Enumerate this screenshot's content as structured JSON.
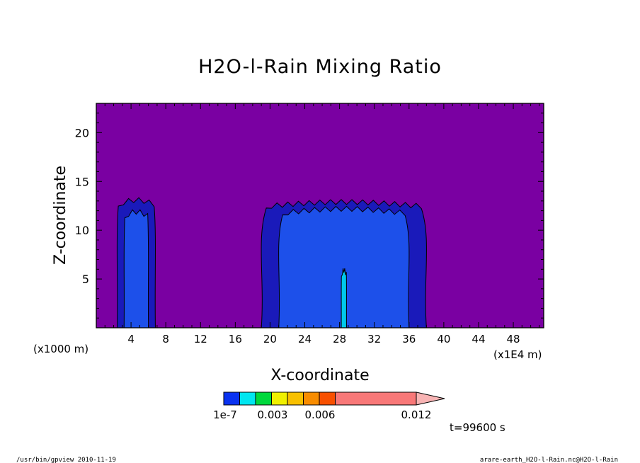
{
  "chart_data": {
    "type": "heatmap",
    "title": "H2O-l-Rain Mixing Ratio",
    "xlabel": "X-coordinate",
    "ylabel": "Z-coordinate",
    "x_unit_left": "(x1000 m)",
    "x_unit_right": "(x1E4 m)",
    "xlim": [
      0,
      51.5
    ],
    "ylim": [
      0,
      23
    ],
    "x_ticks": [
      4,
      8,
      12,
      16,
      20,
      24,
      28,
      32,
      36,
      40,
      44,
      48
    ],
    "y_ticks": [
      5,
      10,
      15,
      20
    ],
    "background_value": "below 1e-7",
    "colorbar": {
      "levels": [
        1e-07,
        0.0015,
        0.003,
        0.0045,
        0.006,
        0.0075,
        0.009,
        0.012
      ],
      "tick_labels": [
        "1e-7",
        "0.003",
        "0.006",
        "0.012"
      ],
      "tick_values": [
        1e-07,
        0.003,
        0.006,
        0.012
      ],
      "colors": [
        "#0a32f0",
        "#00e6f0",
        "#00d83c",
        "#f0f000",
        "#f8c000",
        "#f88c00",
        "#f85000",
        "#f80a0a",
        "#f87878",
        "#f8b4b4"
      ],
      "extend": "max"
    },
    "colors": {
      "background": "#7a00a2",
      "level1": "#1a1aba",
      "level2": "#1d50ea",
      "level3": "#00c8ea"
    },
    "cells": [
      {
        "x_center": 4.6,
        "half_width": 2.2,
        "top": 13.2,
        "level": "level1"
      },
      {
        "x_center": 4.6,
        "half_width": 1.4,
        "top": 12.0,
        "level": "level2"
      },
      {
        "x_center": 28.5,
        "half_width": 9.5,
        "top": 13.0,
        "level": "level1"
      },
      {
        "x_center": 28.5,
        "half_width": 7.5,
        "top": 12.3,
        "level": "level2"
      },
      {
        "x_center": 28.5,
        "half_width": 0.3,
        "top": 6.0,
        "level": "level3"
      }
    ]
  },
  "time_label": "t=99600 s",
  "footer": {
    "left": "/usr/bin/gpview  2010-11-19",
    "right": "arare-earth_H2O-l-Rain.nc@H2O-l-Rain"
  }
}
